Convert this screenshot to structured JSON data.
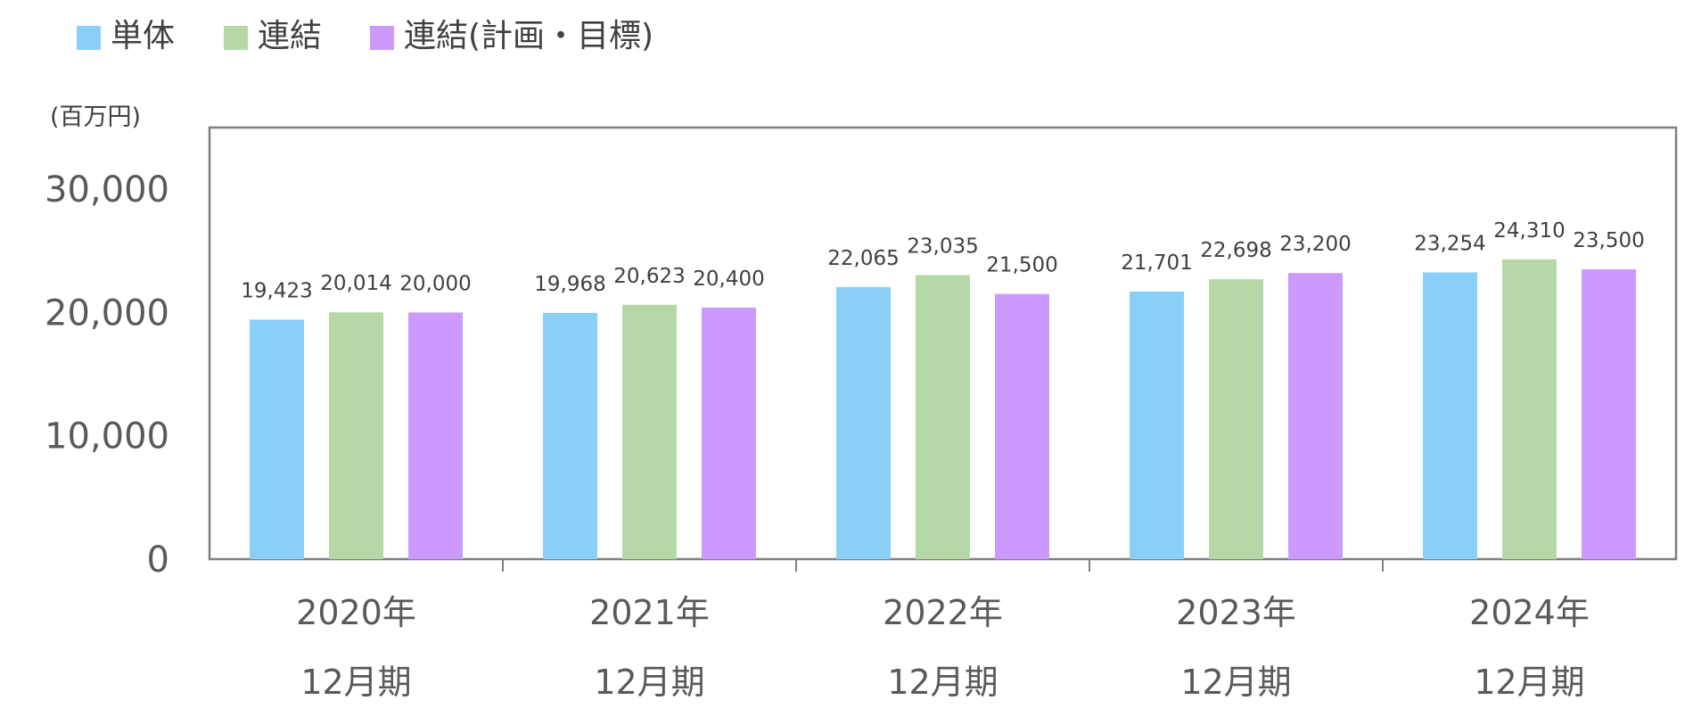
{
  "chart_data": {
    "type": "bar",
    "unit_label": "(百万円)",
    "categories": [
      [
        "2020年",
        "12月期"
      ],
      [
        "2021年",
        "12月期"
      ],
      [
        "2022年",
        "12月期"
      ],
      [
        "2023年",
        "12月期"
      ],
      [
        "2024年",
        "12月期"
      ]
    ],
    "series": [
      {
        "name": "単体",
        "color": "#89CFF8",
        "values": [
          19423,
          19968,
          22065,
          21701,
          23254
        ],
        "labels": [
          "19,423",
          "19,968",
          "22,065",
          "21,701",
          "23,254"
        ]
      },
      {
        "name": "連結",
        "color": "#B5D8A6",
        "values": [
          20014,
          20623,
          23035,
          22698,
          24310
        ],
        "labels": [
          "20,014",
          "20,623",
          "23,035",
          "22,698",
          "24,310"
        ]
      },
      {
        "name": "連結(計画・目標)",
        "color": "#CC99FF",
        "values": [
          20000,
          20400,
          21500,
          23200,
          23500
        ],
        "labels": [
          "20,000",
          "20,400",
          "21,500",
          "23,200",
          "23,500"
        ]
      }
    ],
    "yticks": [
      {
        "value": 0,
        "label": "0"
      },
      {
        "value": 10000,
        "label": "10,000"
      },
      {
        "value": 20000,
        "label": "20,000"
      },
      {
        "value": 30000,
        "label": "30,000"
      }
    ],
    "ylim": [
      0,
      35000
    ],
    "legend_position": "top-left",
    "grid": false
  }
}
